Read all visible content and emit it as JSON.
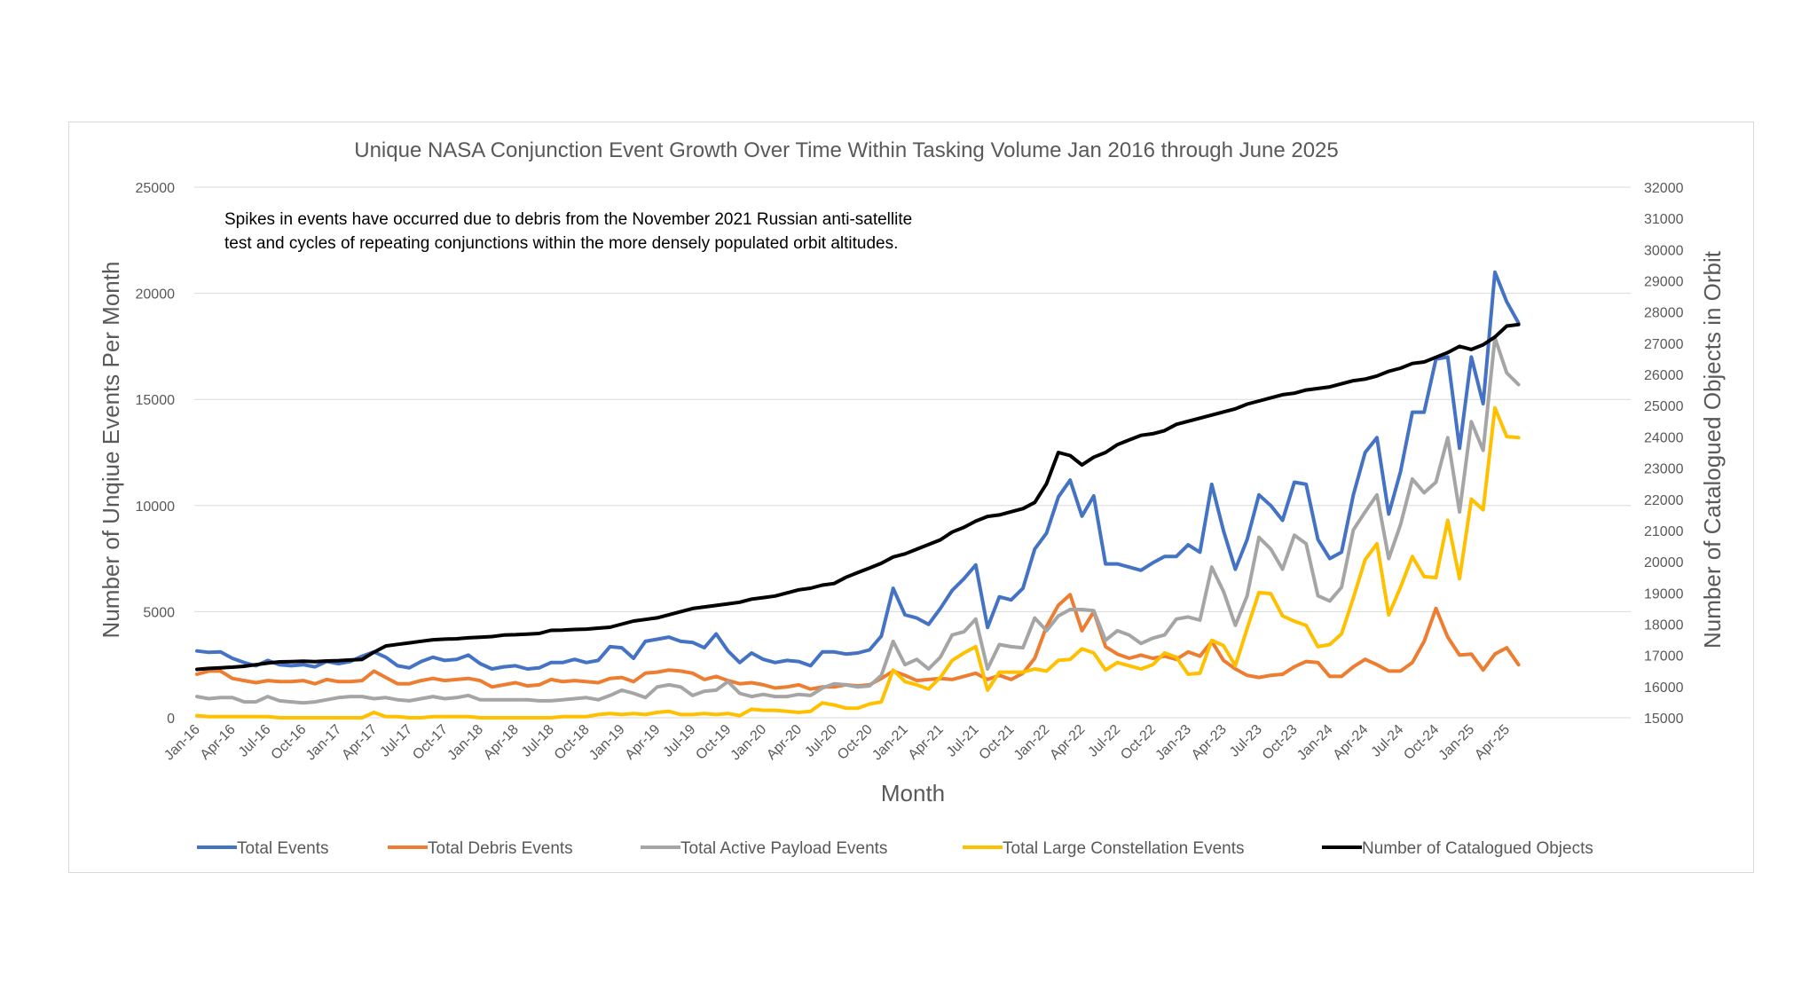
{
  "chart_data": {
    "type": "line",
    "title": "Unique NASA Conjunction Event Growth Over Time Within Tasking Volume Jan 2016 through June 2025",
    "xlabel": "Month",
    "ylabel": "Number of Unqiue Events Per Month",
    "y2label": "Number of Catalogued Objects in Orbit",
    "annotation": [
      "Spikes in events have occurred due to debris from the November 2021 Russian anti-satellite",
      "test and cycles of repeating conjunctions within the more densely populated orbit altitudes."
    ],
    "ylim": [
      0,
      25000
    ],
    "y_ticks": [
      0,
      5000,
      10000,
      15000,
      20000,
      25000
    ],
    "y2lim": [
      15000,
      32000
    ],
    "y2_ticks": [
      15000,
      16000,
      17000,
      18000,
      19000,
      20000,
      21000,
      22000,
      23000,
      24000,
      25000,
      26000,
      27000,
      28000,
      29000,
      30000,
      31000,
      32000
    ],
    "x_tick_labels": [
      "Jan-16",
      "Apr-16",
      "Jul-16",
      "Oct-16",
      "Jan-17",
      "Apr-17",
      "Jul-17",
      "Oct-17",
      "Jan-18",
      "Apr-18",
      "Jul-18",
      "Oct-18",
      "Jan-19",
      "Apr-19",
      "Jul-19",
      "Oct-19",
      "Jan-20",
      "Apr-20",
      "Jul-20",
      "Oct-20",
      "Jan-21",
      "Apr-21",
      "Jul-21",
      "Oct-21",
      "Jan-22",
      "Apr-22",
      "Jul-22",
      "Oct-22",
      "Jan-23",
      "Apr-23",
      "Jul-23",
      "Oct-23",
      "Jan-24",
      "Apr-24",
      "Jul-24",
      "Oct-24",
      "Jan-25",
      "Apr-25"
    ],
    "x_start": "Jan-16",
    "legend_position": "bottom",
    "grid": "horizontal",
    "series": [
      {
        "name": "Total Events",
        "axis": "left",
        "color": "#4472C4",
        "values": [
          3150,
          3080,
          3100,
          2800,
          2600,
          2450,
          2700,
          2500,
          2450,
          2500,
          2400,
          2650,
          2550,
          2650,
          2900,
          3100,
          2850,
          2450,
          2350,
          2650,
          2850,
          2700,
          2750,
          2950,
          2550,
          2300,
          2400,
          2450,
          2300,
          2350,
          2600,
          2600,
          2750,
          2600,
          2700,
          3350,
          3300,
          2800,
          3600,
          3700,
          3800,
          3600,
          3550,
          3300,
          3950,
          3150,
          2600,
          3050,
          2750,
          2600,
          2700,
          2650,
          2450,
          3100,
          3100,
          3000,
          3050,
          3200,
          3850,
          6100,
          4850,
          4700,
          4400,
          5150,
          6000,
          6550,
          7200,
          4250,
          5700,
          5550,
          6100,
          7950,
          8700,
          10400,
          11200,
          9500,
          10450,
          7250,
          7250,
          7100,
          6950,
          7300,
          7600,
          7600,
          8150,
          7800,
          11000,
          8800,
          7000,
          8400,
          10500,
          10000,
          9300,
          11100,
          11000,
          8400,
          7500,
          7800,
          10500,
          12500,
          13200,
          9600,
          11600,
          14400,
          14400,
          16900,
          17000,
          12700,
          17000,
          14800,
          21000,
          19600,
          18600
        ]
      },
      {
        "name": "Total Debris Events",
        "axis": "left",
        "color": "#ED7D31",
        "values": [
          2050,
          2200,
          2200,
          1850,
          1750,
          1650,
          1750,
          1700,
          1700,
          1750,
          1600,
          1800,
          1700,
          1700,
          1750,
          2200,
          1900,
          1600,
          1600,
          1750,
          1850,
          1750,
          1800,
          1850,
          1750,
          1450,
          1550,
          1650,
          1500,
          1550,
          1800,
          1700,
          1750,
          1700,
          1650,
          1850,
          1900,
          1700,
          2100,
          2150,
          2250,
          2200,
          2100,
          1800,
          1950,
          1750,
          1600,
          1650,
          1550,
          1400,
          1450,
          1550,
          1350,
          1450,
          1450,
          1550,
          1500,
          1550,
          1850,
          2200,
          2000,
          1750,
          1800,
          1850,
          1800,
          1950,
          2100,
          1800,
          2000,
          1800,
          2100,
          2800,
          4300,
          5300,
          5800,
          4100,
          5000,
          3350,
          3000,
          2800,
          2950,
          2800,
          2900,
          2750,
          3100,
          2900,
          3600,
          2700,
          2300,
          2000,
          1900,
          2000,
          2050,
          2400,
          2650,
          2600,
          1950,
          1950,
          2400,
          2750,
          2500,
          2200,
          2200,
          2600,
          3600,
          5150,
          3800,
          2950,
          3000,
          2250,
          3000,
          3300,
          2500
        ]
      },
      {
        "name": "Total Active Payload Events",
        "axis": "left",
        "color": "#A5A5A5",
        "values": [
          1000,
          900,
          950,
          950,
          750,
          750,
          1000,
          800,
          750,
          700,
          750,
          850,
          950,
          1000,
          1000,
          900,
          950,
          850,
          800,
          900,
          1000,
          900,
          950,
          1050,
          850,
          850,
          850,
          850,
          850,
          800,
          800,
          850,
          900,
          950,
          850,
          1050,
          1300,
          1150,
          950,
          1450,
          1550,
          1450,
          1050,
          1250,
          1300,
          1700,
          1150,
          1000,
          1100,
          1000,
          1000,
          1100,
          1050,
          1400,
          1600,
          1550,
          1450,
          1500,
          2000,
          3600,
          2500,
          2750,
          2300,
          2850,
          3900,
          4050,
          4650,
          2300,
          3450,
          3350,
          3300,
          4700,
          4100,
          4800,
          5100,
          5100,
          5050,
          3650,
          4100,
          3900,
          3500,
          3750,
          3900,
          4650,
          4750,
          4600,
          7100,
          5950,
          4350,
          5750,
          8500,
          7950,
          7000,
          8600,
          8200,
          5750,
          5500,
          6150,
          8850,
          9700,
          10500,
          7500,
          9100,
          11250,
          10600,
          11100,
          13200,
          9700,
          13950,
          12600,
          17900,
          16250,
          15700
        ]
      },
      {
        "name": "Total Large Constellation Events",
        "axis": "left",
        "color": "#FFC000",
        "values": [
          100,
          50,
          50,
          50,
          50,
          50,
          50,
          0,
          0,
          0,
          0,
          0,
          0,
          0,
          0,
          250,
          50,
          50,
          0,
          0,
          50,
          50,
          50,
          50,
          0,
          0,
          0,
          0,
          0,
          0,
          0,
          50,
          50,
          50,
          150,
          200,
          150,
          200,
          150,
          250,
          300,
          150,
          150,
          200,
          150,
          200,
          100,
          400,
          350,
          350,
          300,
          250,
          300,
          700,
          600,
          450,
          450,
          650,
          750,
          2250,
          1700,
          1550,
          1350,
          1900,
          2700,
          3050,
          3350,
          1300,
          2150,
          2150,
          2150,
          2300,
          2200,
          2700,
          2750,
          3250,
          3050,
          2250,
          2600,
          2450,
          2300,
          2500,
          3050,
          2850,
          2050,
          2100,
          3650,
          3400,
          2450,
          4200,
          5900,
          5850,
          4800,
          4550,
          4350,
          3350,
          3450,
          3950,
          5650,
          7450,
          8200,
          4850,
          6150,
          7600,
          6650,
          6600,
          9300,
          6550,
          10300,
          9800,
          14600,
          13250,
          13200
        ]
      },
      {
        "name": "Number of Catalogued Objects",
        "axis": "right",
        "color": "#000000",
        "values": [
          16550,
          16580,
          16600,
          16620,
          16650,
          16700,
          16750,
          16790,
          16800,
          16810,
          16800,
          16820,
          16830,
          16850,
          16870,
          17100,
          17300,
          17350,
          17400,
          17450,
          17500,
          17520,
          17530,
          17560,
          17580,
          17600,
          17650,
          17660,
          17680,
          17700,
          17800,
          17810,
          17830,
          17840,
          17870,
          17900,
          18000,
          18100,
          18150,
          18200,
          18300,
          18400,
          18500,
          18550,
          18600,
          18650,
          18700,
          18800,
          18850,
          18900,
          19000,
          19100,
          19150,
          19250,
          19300,
          19500,
          19650,
          19800,
          19950,
          20150,
          20250,
          20400,
          20550,
          20700,
          20950,
          21100,
          21300,
          21450,
          21500,
          21600,
          21700,
          21900,
          22500,
          23500,
          23400,
          23100,
          23350,
          23500,
          23750,
          23900,
          24050,
          24100,
          24200,
          24400,
          24500,
          24600,
          24700,
          24800,
          24900,
          25050,
          25150,
          25250,
          25350,
          25400,
          25500,
          25550,
          25600,
          25700,
          25800,
          25850,
          25950,
          26100,
          26200,
          26350,
          26400,
          26550,
          26700,
          26900,
          26800,
          26950,
          27200,
          27550,
          27600
        ]
      }
    ]
  }
}
